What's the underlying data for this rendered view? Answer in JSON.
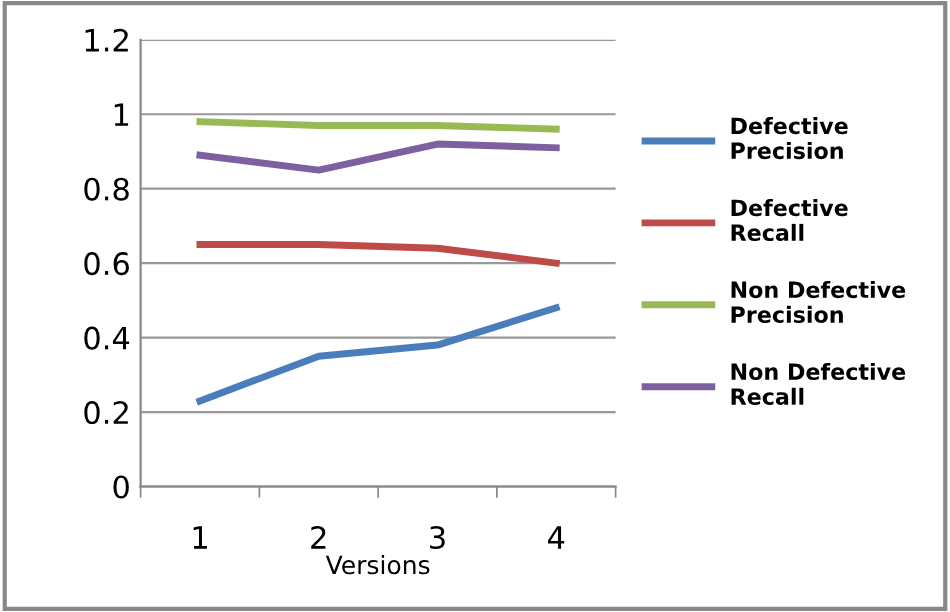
{
  "chart_data": {
    "type": "line",
    "xlabel": "Versions",
    "categories": [
      "1",
      "2",
      "3",
      "4"
    ],
    "ylim": [
      0,
      1.2
    ],
    "yticks": [
      0,
      0.2,
      0.4,
      0.6,
      0.8,
      1,
      1.2
    ],
    "grid": "y",
    "legend": "right",
    "marker": "none",
    "line_style": "solid",
    "series": [
      {
        "name": "Defective Precision",
        "color": "#4a7ebb",
        "values": [
          0.23,
          0.35,
          0.38,
          0.48
        ]
      },
      {
        "name": "Defective Recall",
        "color": "#be4b48",
        "values": [
          0.65,
          0.65,
          0.64,
          0.6
        ]
      },
      {
        "name": "Non Defective Precision",
        "color": "#98b954",
        "values": [
          0.98,
          0.97,
          0.97,
          0.96
        ]
      },
      {
        "name": "Non Defective Recall",
        "color": "#7d60a0",
        "values": [
          0.89,
          0.85,
          0.92,
          0.91
        ]
      }
    ]
  }
}
